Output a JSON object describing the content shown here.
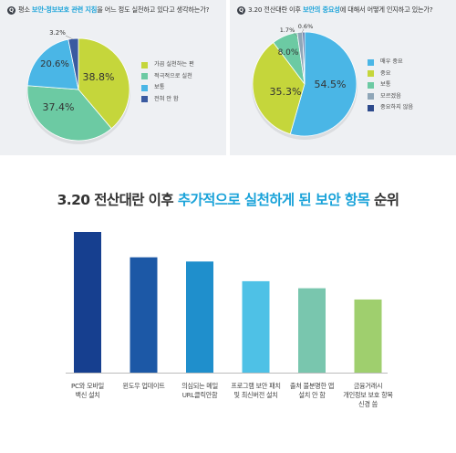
{
  "chart_data": [
    {
      "type": "pie",
      "title_parts": [
        "평소 ",
        "보안·정보보호 관련 지침",
        "을 어느 정도 실천하고 있다고 생각하는가?"
      ],
      "title_icon": "Q",
      "labels": [
        "가끔 실천하는 편",
        "적극적으로 실천",
        "보통",
        "전혀 안 함"
      ],
      "values": [
        38.8,
        37.4,
        20.6,
        3.2
      ],
      "value_labels": [
        "38.8%",
        "37.4%",
        "20.6%",
        "3.2%"
      ],
      "colors": [
        "#c5d63b",
        "#6ccaa3",
        "#4ab6e6",
        "#3a5aa0"
      ],
      "legend_position": "right"
    },
    {
      "type": "pie",
      "title_parts": [
        "3.20 전산대란 이후 ",
        "보안의 중요성",
        "에 대해서 어떻게 인지하고 있는가?"
      ],
      "title_icon": "Q",
      "labels": [
        "매우 중요",
        "중요",
        "보통",
        "모르겠음",
        "중요하지 않음"
      ],
      "values": [
        54.5,
        35.3,
        8.0,
        1.7,
        0.6
      ],
      "value_labels": [
        "54.5%",
        "35.3%",
        "8.0%",
        "1.7%",
        "0.6%"
      ],
      "colors": [
        "#4ab6e6",
        "#c5d63b",
        "#6ccaa3",
        "#8fa6b8",
        "#2d4a8c"
      ],
      "legend_position": "right"
    },
    {
      "type": "bar",
      "title_parts": [
        "3.20 전산대란 이후 ",
        "추가적으로 실천하게 된 보안 항목",
        " 순위"
      ],
      "categories": [
        [
          "PC와 모바일",
          "백신 설치"
        ],
        [
          "윈도우 업데이트"
        ],
        [
          "의심되는 메일",
          "URL클릭안함"
        ],
        [
          "프로그램 보안 패치",
          "및 최신버전 설치"
        ],
        [
          "출처 불분명한 앱",
          "설치 안 함"
        ],
        [
          "금융거래시",
          "개인정보 보호 항목",
          "신경 씀"
        ]
      ],
      "values": [
        100,
        82,
        79,
        65,
        60,
        52
      ],
      "colors": [
        "#163f8f",
        "#1c58a6",
        "#1f8fcc",
        "#4ec1e6",
        "#79c6ae",
        "#9fcf6e"
      ],
      "ylim": [
        0,
        100
      ],
      "grid": false
    }
  ]
}
